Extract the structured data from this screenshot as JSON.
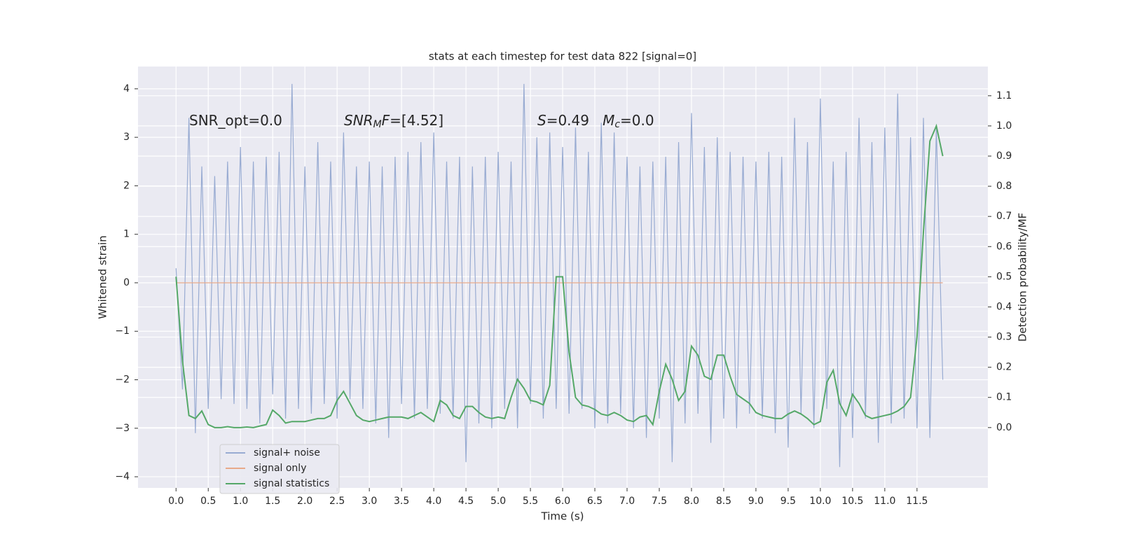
{
  "chart_data": {
    "type": "line",
    "title": "stats at each timestep for test data 822 [signal=0]",
    "xlabel": "Time (s)",
    "ylabel": "Whitened strain",
    "y2label": "Detection probability/MF",
    "annotations": [
      [
        {
          "text": "SNR_opt=0.0"
        }
      ],
      [
        {
          "text": "SNR",
          "style": "italic"
        },
        {
          "text": "M",
          "style": "italic-sub"
        },
        {
          "text": "F",
          "style": "italic"
        },
        {
          "text": "=[4.52]"
        }
      ],
      [
        {
          "text": "S",
          "style": "italic"
        },
        {
          "text": "=0.49   "
        },
        {
          "text": "M",
          "style": "italic"
        },
        {
          "text": "c",
          "style": "italic-sub"
        },
        {
          "text": "=0.0"
        }
      ]
    ],
    "x": [
      0.0,
      0.1,
      0.2,
      0.3,
      0.4,
      0.5,
      0.6,
      0.7,
      0.8,
      0.9,
      1.0,
      1.1,
      1.2,
      1.3,
      1.4,
      1.5,
      1.6,
      1.7,
      1.8,
      1.9,
      2.0,
      2.1,
      2.2,
      2.3,
      2.4,
      2.5,
      2.6,
      2.7,
      2.8,
      2.9,
      3.0,
      3.1,
      3.2,
      3.3,
      3.4,
      3.5,
      3.6,
      3.7,
      3.8,
      3.9,
      4.0,
      4.1,
      4.2,
      4.3,
      4.4,
      4.5,
      4.6,
      4.7,
      4.8,
      4.9,
      5.0,
      5.1,
      5.2,
      5.3,
      5.4,
      5.5,
      5.6,
      5.7,
      5.8,
      5.9,
      6.0,
      6.1,
      6.2,
      6.3,
      6.4,
      6.5,
      6.6,
      6.7,
      6.8,
      6.9,
      7.0,
      7.1,
      7.2,
      7.3,
      7.4,
      7.5,
      7.6,
      7.7,
      7.8,
      7.9,
      8.0,
      8.1,
      8.2,
      8.3,
      8.4,
      8.5,
      8.6,
      8.7,
      8.8,
      8.9,
      9.0,
      9.1,
      9.2,
      9.3,
      9.4,
      9.5,
      9.6,
      9.7,
      9.8,
      9.9,
      10.0,
      10.1,
      10.2,
      10.3,
      10.4,
      10.5,
      10.6,
      10.7,
      10.8,
      10.9,
      11.0,
      11.1,
      11.2,
      11.3,
      11.4,
      11.5,
      11.6,
      11.7,
      11.8,
      11.9
    ],
    "series": [
      {
        "name": "signal+ noise",
        "color": "#98abd2",
        "values": [
          0.3,
          -2.2,
          3.4,
          -3.1,
          2.4,
          -2.6,
          2.2,
          -2.4,
          2.5,
          -2.5,
          2.8,
          -2.6,
          2.5,
          -2.9,
          2.6,
          -2.3,
          2.7,
          -2.8,
          4.1,
          -2.6,
          2.4,
          -2.7,
          2.9,
          -2.5,
          2.5,
          -2.8,
          3.1,
          -2.4,
          2.4,
          -2.6,
          2.5,
          -2.9,
          2.4,
          -3.2,
          2.6,
          -2.5,
          2.7,
          -2.8,
          2.9,
          -2.6,
          3.1,
          -2.7,
          2.5,
          -2.8,
          2.6,
          -3.7,
          2.4,
          -2.9,
          2.6,
          -3.0,
          2.7,
          -2.6,
          2.5,
          -3.0,
          4.1,
          -2.5,
          3.0,
          -2.8,
          3.1,
          -2.6,
          2.8,
          -2.7,
          3.2,
          -2.6,
          2.7,
          -3.0,
          3.3,
          -2.9,
          3.1,
          -2.7,
          2.6,
          -3.0,
          2.4,
          -3.2,
          2.5,
          -2.8,
          2.6,
          -3.7,
          2.9,
          -2.9,
          3.5,
          -2.7,
          2.8,
          -3.3,
          3.0,
          -2.8,
          2.7,
          -3.0,
          2.6,
          -2.7,
          2.5,
          -2.8,
          2.7,
          -3.1,
          2.6,
          -3.4,
          3.4,
          -2.7,
          2.9,
          -3.0,
          3.8,
          -2.6,
          2.5,
          -3.8,
          2.7,
          -3.2,
          3.4,
          -2.8,
          2.9,
          -3.3,
          3.2,
          -2.9,
          3.9,
          -2.8,
          3.0,
          -3.0,
          3.4,
          -3.2,
          3.2,
          -2.0
        ]
      },
      {
        "name": "signal only",
        "color": "#e8a98a",
        "values": [
          0,
          0,
          0,
          0,
          0,
          0,
          0,
          0,
          0,
          0,
          0,
          0,
          0,
          0,
          0,
          0,
          0,
          0,
          0,
          0,
          0,
          0,
          0,
          0,
          0,
          0,
          0,
          0,
          0,
          0,
          0,
          0,
          0,
          0,
          0,
          0,
          0,
          0,
          0,
          0,
          0,
          0,
          0,
          0,
          0,
          0,
          0,
          0,
          0,
          0,
          0,
          0,
          0,
          0,
          0,
          0,
          0,
          0,
          0,
          0,
          0,
          0,
          0,
          0,
          0,
          0,
          0,
          0,
          0,
          0,
          0,
          0,
          0,
          0,
          0,
          0,
          0,
          0,
          0,
          0,
          0,
          0,
          0,
          0,
          0,
          0,
          0,
          0,
          0,
          0,
          0,
          0,
          0,
          0,
          0,
          0,
          0,
          0,
          0,
          0,
          0,
          0,
          0,
          0,
          0,
          0,
          0,
          0,
          0,
          0,
          0,
          0,
          0,
          0,
          0,
          0,
          0,
          0,
          0,
          0
        ]
      },
      {
        "name": "signal statistics",
        "color": "#55a868",
        "axis": "y2",
        "values": [
          0.5,
          0.22,
          0.04,
          0.03,
          0.055,
          0.01,
          0.0,
          0.0,
          0.003,
          0.0,
          0.0,
          0.002,
          0.0,
          0.005,
          0.01,
          0.058,
          0.04,
          0.015,
          0.02,
          0.02,
          0.02,
          0.025,
          0.03,
          0.03,
          0.04,
          0.09,
          0.12,
          0.08,
          0.04,
          0.025,
          0.02,
          0.025,
          0.03,
          0.035,
          0.035,
          0.035,
          0.03,
          0.04,
          0.05,
          0.035,
          0.02,
          0.09,
          0.075,
          0.04,
          0.03,
          0.07,
          0.07,
          0.05,
          0.035,
          0.03,
          0.035,
          0.03,
          0.1,
          0.16,
          0.13,
          0.09,
          0.085,
          0.075,
          0.14,
          0.5,
          0.5,
          0.25,
          0.1,
          0.075,
          0.07,
          0.06,
          0.045,
          0.04,
          0.05,
          0.04,
          0.025,
          0.02,
          0.035,
          0.04,
          0.01,
          0.12,
          0.21,
          0.16,
          0.09,
          0.12,
          0.27,
          0.24,
          0.17,
          0.16,
          0.24,
          0.24,
          0.17,
          0.11,
          0.095,
          0.08,
          0.05,
          0.04,
          0.035,
          0.03,
          0.03,
          0.045,
          0.055,
          0.045,
          0.03,
          0.01,
          0.02,
          0.15,
          0.19,
          0.08,
          0.04,
          0.11,
          0.08,
          0.04,
          0.03,
          0.035,
          0.04,
          0.045,
          0.055,
          0.07,
          0.1,
          0.3,
          0.65,
          0.95,
          1.0,
          0.9
        ]
      }
    ],
    "xlim": [
      -0.59,
      12.6
    ],
    "ylim": [
      -4.23,
      4.46
    ],
    "y2lim": [
      -0.2,
      1.197
    ],
    "xticks": [
      {
        "value": 0,
        "label": "0.0"
      },
      0.5,
      {
        "value": 1,
        "label": "1.0"
      },
      1.5,
      {
        "value": 2,
        "label": "2.0"
      },
      2.5,
      {
        "value": 3,
        "label": "3.0"
      },
      3.5,
      {
        "value": 4,
        "label": "4.0"
      },
      4.5,
      {
        "value": 5,
        "label": "5.0"
      },
      5.5,
      {
        "value": 6,
        "label": "6.0"
      },
      6.5,
      {
        "value": 7,
        "label": "7.0"
      },
      7.5,
      {
        "value": 8,
        "label": "8.0"
      },
      8.5,
      {
        "value": 9,
        "label": "9.0"
      },
      9.5,
      {
        "value": 10,
        "label": "10.0"
      },
      10.5,
      {
        "value": 11,
        "label": "11.0"
      },
      11.5
    ],
    "yticks": [
      {
        "value": -4,
        "label": "−4"
      },
      {
        "value": -3,
        "label": "−3"
      },
      {
        "value": -2,
        "label": "−2"
      },
      {
        "value": -1,
        "label": "−1"
      },
      0,
      1,
      2,
      3,
      4
    ],
    "y2ticks": [
      {
        "value": 0,
        "label": "0.0"
      },
      0.1,
      0.2,
      0.3,
      0.4,
      0.5,
      0.6,
      0.7,
      0.8,
      0.9,
      {
        "value": 1,
        "label": "1.0"
      },
      1.1
    ],
    "grid": true,
    "legend": "lower left"
  }
}
